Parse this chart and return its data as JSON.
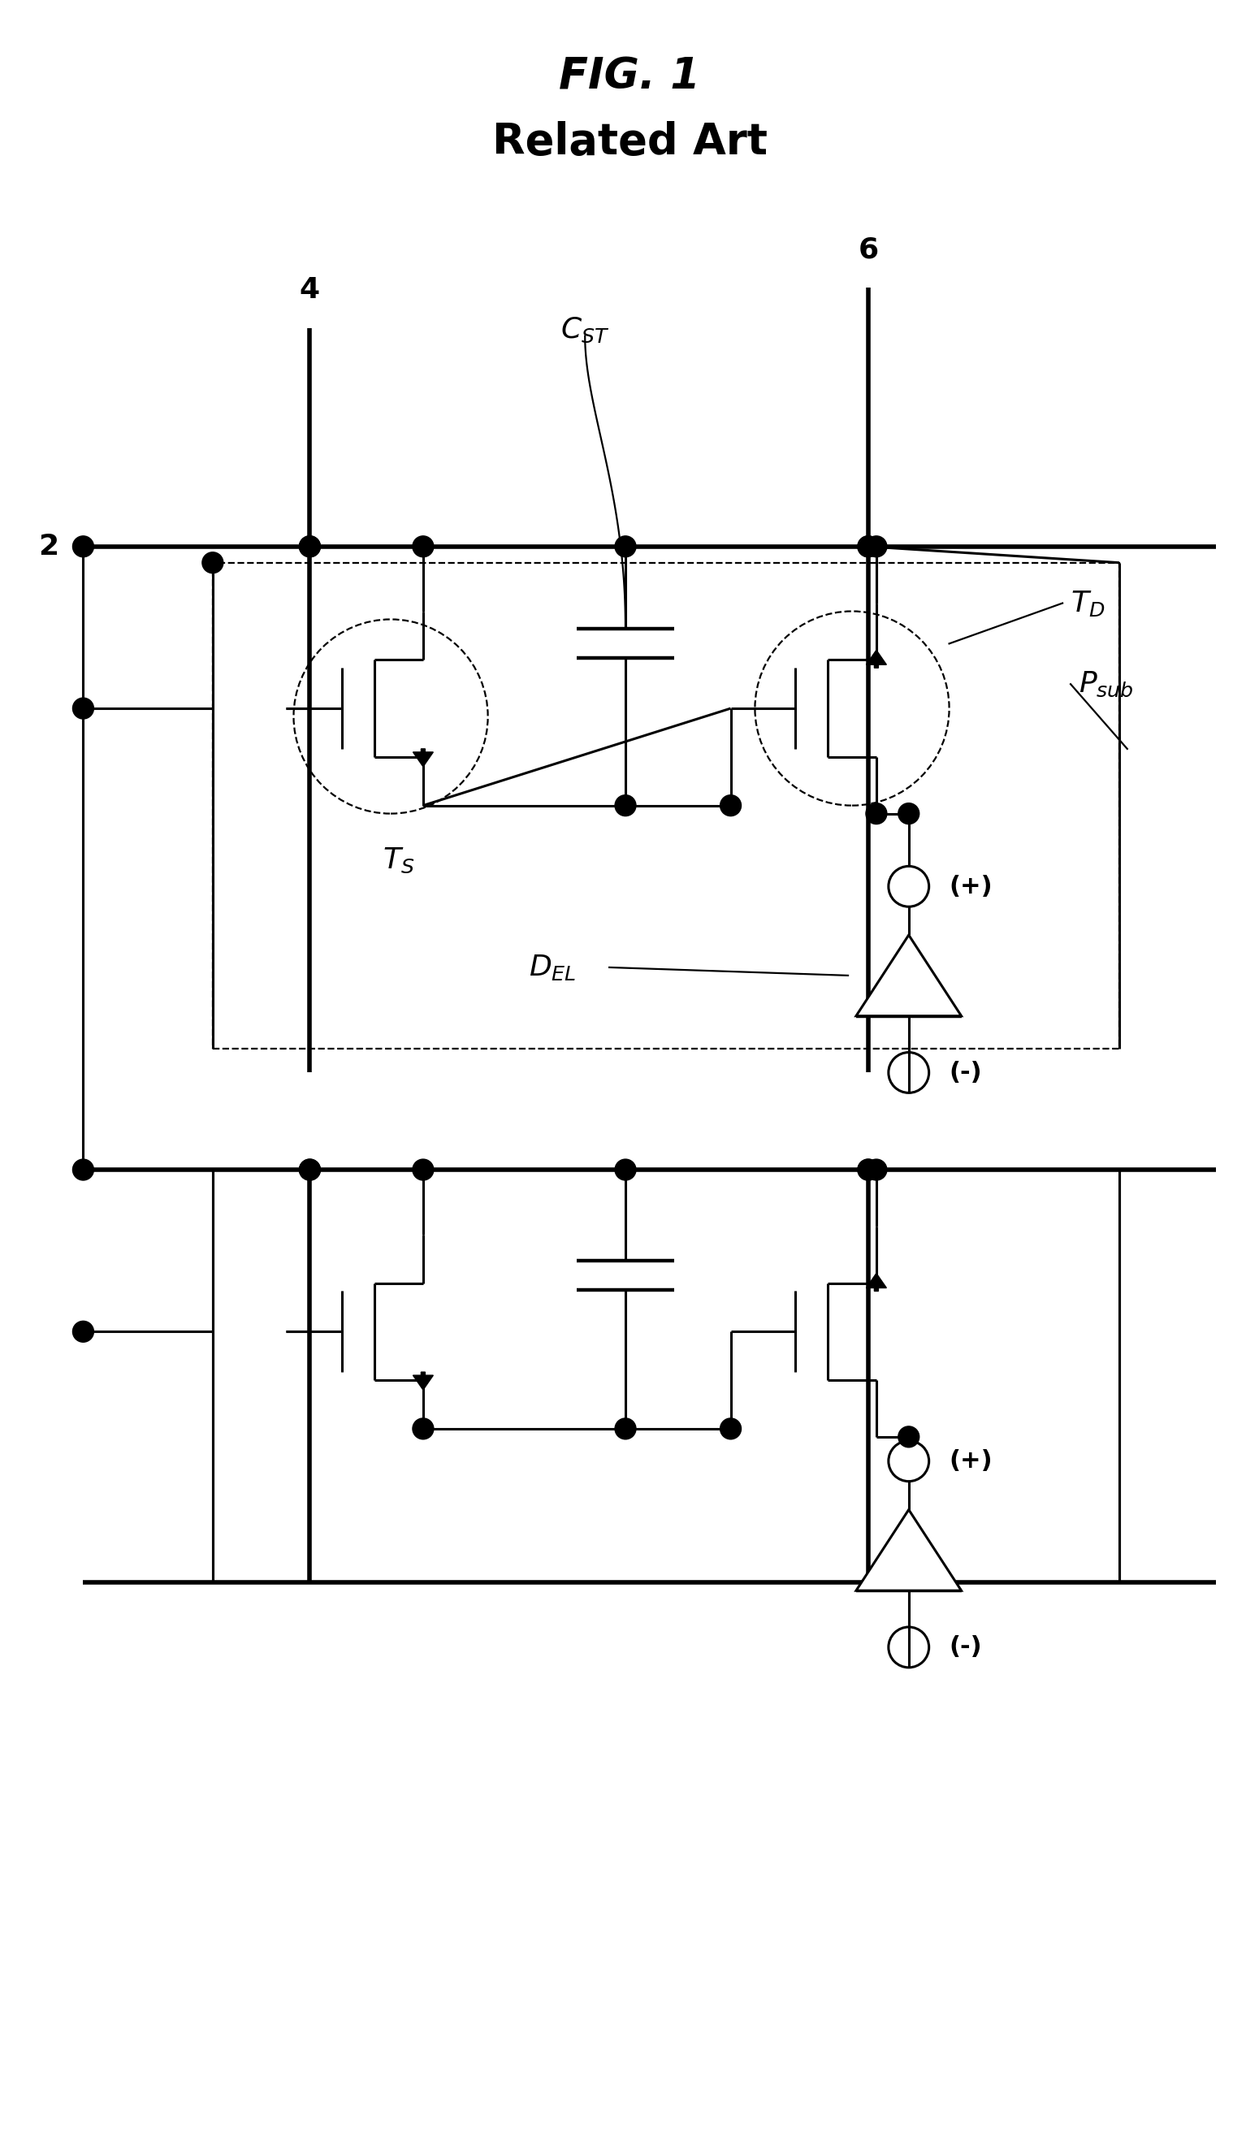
{
  "title_line1": "FIG. 1",
  "title_line2": "Related Art",
  "bg_color": "#ffffff",
  "line_color": "#000000",
  "title_fontsize": 38,
  "label_fontsize": 26,
  "small_fontsize": 22
}
